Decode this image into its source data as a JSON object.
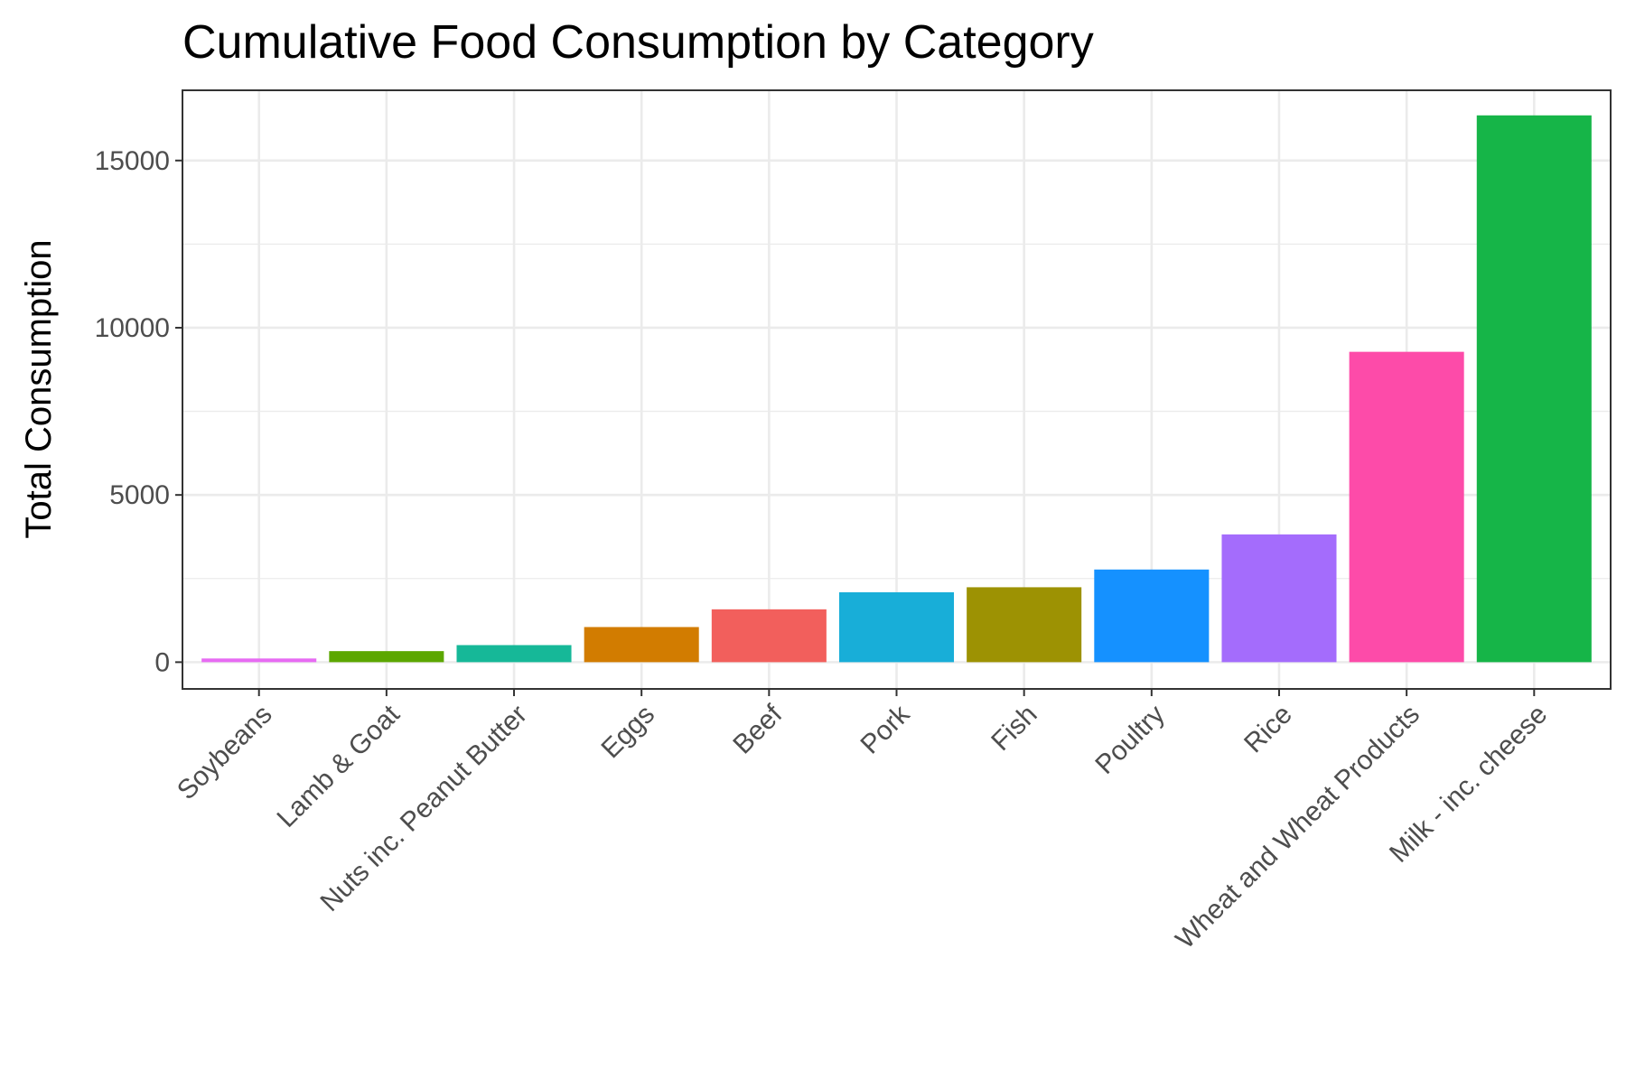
{
  "chart_data": {
    "type": "bar",
    "title": "Cumulative Food Consumption by Category",
    "xlabel": "",
    "ylabel": "Total Consumption",
    "categories": [
      "Soybeans",
      "Lamb & Goat",
      "Nuts inc. Peanut Butter",
      "Eggs",
      "Beef",
      "Pork",
      "Fish",
      "Poultry",
      "Rice",
      "Wheat and Wheat Products",
      "Milk - inc. cheese"
    ],
    "values": [
      110,
      330,
      510,
      1050,
      1580,
      2090,
      2240,
      2770,
      3820,
      9280,
      16350
    ],
    "colors": [
      "#e76bf3",
      "#5ca700",
      "#16b898",
      "#d27c00",
      "#f25f5c",
      "#18aed8",
      "#9d9203",
      "#1591ff",
      "#a46cfc",
      "#fd4ba9",
      "#16b548"
    ],
    "ylim": [
      -800,
      17100
    ],
    "y_ticks": [
      0,
      5000,
      10000,
      15000
    ],
    "y_tick_labels": [
      "0",
      "5000",
      "10000",
      "15000"
    ],
    "grid": true,
    "legend": "none"
  }
}
